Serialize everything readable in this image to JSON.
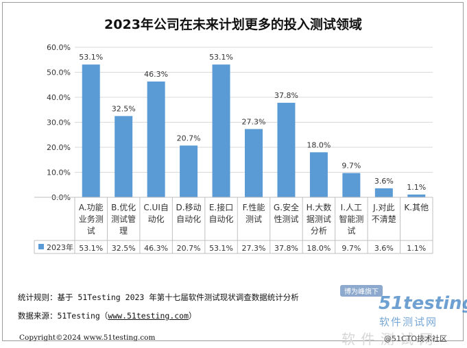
{
  "chart_data": {
    "type": "bar",
    "title": "2023年公司在未来计划更多的投入测试领域",
    "categories": [
      [
        "A.功能",
        "业务测",
        "试"
      ],
      [
        "B.优化",
        "测试管",
        "理"
      ],
      [
        "C.UI自",
        "动化"
      ],
      [
        "D.移动",
        "自动化"
      ],
      [
        "E.接口",
        "自动化"
      ],
      [
        "F.性能",
        "测试"
      ],
      [
        "G.安全",
        "性测试"
      ],
      [
        "H.大数",
        "据测试",
        "分析"
      ],
      [
        "I.人工",
        "智能测",
        "试"
      ],
      [
        "J.对此",
        "不清楚"
      ],
      [
        "K.其他"
      ]
    ],
    "series": [
      {
        "name": "2023年",
        "values": [
          53.1,
          32.5,
          46.3,
          20.7,
          53.1,
          27.3,
          37.8,
          18.0,
          9.7,
          3.6,
          1.1
        ]
      }
    ],
    "value_labels": [
      "53.1%",
      "32.5%",
      "46.3%",
      "20.7%",
      "53.1%",
      "27.3%",
      "37.8%",
      "18.0%",
      "9.7%",
      "3.6%",
      "1.1%"
    ],
    "y_ticks": [
      "0.0%",
      "10.0%",
      "20.0%",
      "30.0%",
      "40.0%",
      "50.0%",
      "60.0%"
    ],
    "ylim": [
      0,
      60
    ],
    "grid": true,
    "legend": "data-table",
    "bar_color": "#5b9bd5",
    "grid_color": "#d9d9d9"
  },
  "footer": {
    "rule": "统计规则：基于 51Testing 2023 年第十七届软件测试现状调查数据统计分析",
    "source_prefix": "数据来源：51Testing（",
    "source_link": "www.51testing.com",
    "source_suffix": "）",
    "copyright": "Copyright©2024 www.51testing.com"
  },
  "watermarks": {
    "badge": "博为峰旗下",
    "brand": "51testing",
    "brand_sub": "软件测试网",
    "bottom": "软 件 测 试 网",
    "community": "@51CTO技术社区"
  }
}
